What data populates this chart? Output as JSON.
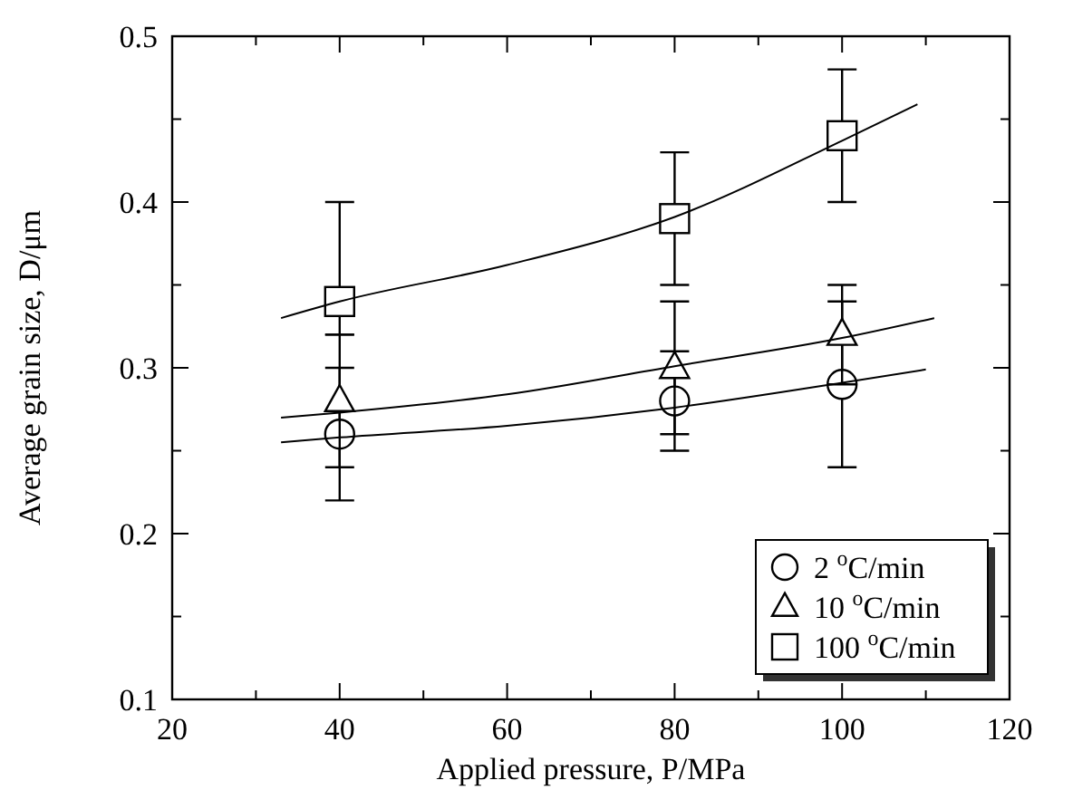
{
  "chart_data": {
    "type": "scatter",
    "xlabel": "Applied pressure, P/MPa",
    "ylabel": "Average grain size, D/μm",
    "xlim": [
      20,
      120
    ],
    "ylim": [
      0.1,
      0.5
    ],
    "xticks": [
      20,
      {
        "value": 30,
        "label": null
      },
      40,
      {
        "value": 50,
        "label": null
      },
      60,
      {
        "value": 70,
        "label": null
      },
      80,
      {
        "value": 90,
        "label": null
      },
      100,
      {
        "value": 110,
        "label": null
      },
      120
    ],
    "yticks": [
      0.1,
      {
        "value": 0.15,
        "label": null
      },
      0.2,
      {
        "value": 0.25,
        "label": null
      },
      0.3,
      {
        "value": 0.35,
        "label": null
      },
      0.4,
      {
        "value": 0.45,
        "label": null
      },
      0.5
    ],
    "legend": "bottom right",
    "series": [
      {
        "name": "2 $^{o}$C/min",
        "color": "#000000",
        "marker": "circle",
        "x": [
          40,
          80,
          100
        ],
        "values": [
          0.26,
          0.28,
          0.29
        ],
        "errors": [
          0.04,
          0.03,
          0.05
        ]
      },
      {
        "name": "10 $^{o}$C/min",
        "color": "#000000",
        "marker": "triangle",
        "x": [
          40,
          80,
          100
        ],
        "values": [
          0.28,
          0.3,
          0.32
        ],
        "errors": [
          0.04,
          0.04,
          0.03
        ]
      },
      {
        "name": "100 $^{o}$C/min",
        "color": "#000000",
        "marker": "square",
        "x": [
          40,
          80,
          100
        ],
        "values": [
          0.34,
          0.39,
          0.44
        ],
        "errors": [
          [
            0.32,
            0.4
          ],
          0.04,
          0.04
        ]
      },
      {
        "type": "line",
        "color": "#000000",
        "marker": "none",
        "x": [
          33,
          40,
          60,
          80,
          100,
          110
        ],
        "values": [
          0.255,
          0.258,
          0.265,
          0.276,
          0.291,
          0.299
        ]
      },
      {
        "type": "line",
        "color": "#000000",
        "marker": "none",
        "x": [
          33,
          40,
          60,
          80,
          100,
          111
        ],
        "values": [
          0.27,
          0.273,
          0.284,
          0.301,
          0.318,
          0.33
        ]
      },
      {
        "type": "line",
        "color": "#000000",
        "marker": "none",
        "x": [
          33,
          40,
          60,
          80,
          100,
          109
        ],
        "values": [
          0.33,
          0.34,
          0.362,
          0.391,
          0.437,
          0.459
        ]
      }
    ]
  }
}
